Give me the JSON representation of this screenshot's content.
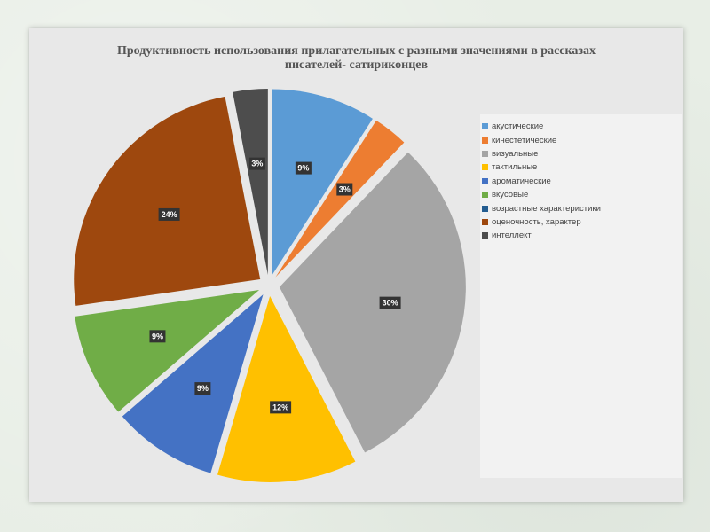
{
  "chart_data": {
    "type": "pie",
    "title_lines": [
      "Продуктивность использования прилагательных с разными значениями в рассказах",
      "писателей- сатириконцев"
    ],
    "categories": [
      "акустические",
      "кинестетические",
      "визуальные",
      "тактильные",
      "ароматические",
      "вкусовые",
      "возрастные характеристики",
      "оценочность, характер",
      "интеллект"
    ],
    "values": [
      9,
      3,
      30,
      12,
      9,
      9,
      0,
      24,
      3
    ],
    "value_labels": [
      "9%",
      "3%",
      "30%",
      "12%",
      "9%",
      "9%",
      "",
      "24%",
      "3%"
    ],
    "colors": [
      "#5b9bd5",
      "#ed7d31",
      "#a5a5a5",
      "#ffc000",
      "#4472c4",
      "#70ad47",
      "#255e91",
      "#9e480e",
      "#4d4d4d"
    ],
    "exploded": true,
    "legend_position": "right",
    "data_labels": "percent"
  }
}
